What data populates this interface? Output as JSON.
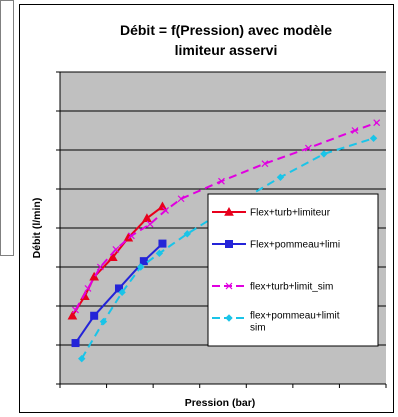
{
  "chart_data": {
    "type": "line",
    "title_lines": [
      "Débit = f(Pression) avec modèle",
      "limiteur asservi"
    ],
    "xlabel": "Pression (bar)",
    "ylabel": "Débit (l/min)",
    "xlim": [
      0,
      10.5
    ],
    "ylim": [
      0,
      8
    ],
    "grid": true,
    "plot_background": "#c0c0c0",
    "legend_position": "right",
    "series": [
      {
        "name": "Flex+turb+limiteur",
        "color": "#e8001c",
        "dash": "solid",
        "marker": "triangle",
        "x": [
          0.4,
          0.8,
          1.1,
          1.7,
          2.2,
          2.8,
          3.3
        ],
        "y": [
          1.75,
          2.25,
          2.75,
          3.25,
          3.75,
          4.25,
          4.55
        ]
      },
      {
        "name": "Flex+pommeau+limi",
        "color": "#2424d8",
        "dash": "solid",
        "marker": "square",
        "x": [
          0.5,
          1.1,
          1.9,
          2.7,
          3.3
        ],
        "y": [
          1.05,
          1.75,
          2.45,
          3.15,
          3.6
        ]
      },
      {
        "name": "flex+turb+limit_sim",
        "color": "#e000e0",
        "dash": "dashed",
        "marker": "x",
        "x": [
          0.5,
          0.9,
          1.3,
          1.8,
          2.3,
          2.9,
          3.4,
          3.9,
          5.2,
          6.6,
          8.0,
          9.5,
          10.2
        ],
        "y": [
          1.9,
          2.45,
          3.0,
          3.45,
          3.8,
          4.1,
          4.45,
          4.75,
          5.2,
          5.65,
          6.05,
          6.5,
          6.7
        ]
      },
      {
        "name": "flex+pommeau+limit sim",
        "color": "#1ac4e8",
        "dash": "dashed",
        "marker": "diamond",
        "x": [
          0.7,
          1.4,
          2.0,
          2.6,
          3.2,
          4.1,
          5.6,
          7.1,
          8.5,
          10.1
        ],
        "y": [
          0.65,
          1.6,
          2.35,
          3.0,
          3.35,
          3.85,
          4.6,
          5.3,
          5.9,
          6.3
        ]
      }
    ]
  }
}
